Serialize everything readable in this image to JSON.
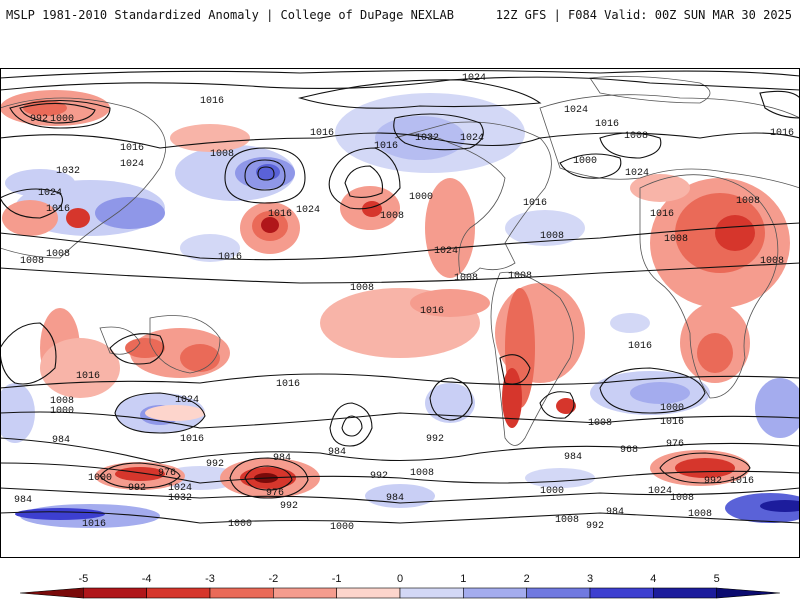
{
  "header": {
    "left": "MSLP 1981-2010 Standardized Anomaly | College of DuPage NEXLAB",
    "right": "12Z GFS | F084 Valid: 00Z SUN MAR 30 2025"
  },
  "colorbar": {
    "ticks": [
      "-5",
      "-4",
      "-3",
      "-2",
      "-1",
      "0",
      "1",
      "2",
      "3",
      "4",
      "5"
    ],
    "colors": [
      "#7a0a0a",
      "#b0161a",
      "#d6362c",
      "#ea6a58",
      "#f59c8e",
      "#fdd5cc",
      "#d3d8f6",
      "#a4acee",
      "#7079e0",
      "#3d3fd0",
      "#1c1c9c",
      "#0b0b70"
    ]
  },
  "isobars": [
    "1024",
    "1016",
    "992",
    "1000",
    "1016",
    "1008",
    "1016",
    "1024",
    "1032",
    "1024",
    "1016",
    "1024",
    "1016",
    "1008",
    "1016",
    "1024",
    "1032",
    "1024",
    "1016",
    "1000",
    "1024",
    "1008",
    "1016",
    "1008",
    "1008",
    "1016",
    "1024",
    "1000",
    "1008",
    "1008",
    "1008",
    "1016",
    "1008",
    "1016",
    "1008",
    "1008",
    "1016",
    "1016",
    "1016",
    "1024",
    "1008",
    "1000",
    "984",
    "1016",
    "1016",
    "1008",
    "992",
    "984",
    "984",
    "976",
    "1000",
    "992",
    "1024",
    "1032",
    "984",
    "976",
    "992",
    "1016",
    "1000",
    "1000",
    "992",
    "984",
    "1008",
    "1000",
    "992",
    "984",
    "968",
    "976",
    "992",
    "1016",
    "1024",
    "1008",
    "1008",
    "1000",
    "1016",
    "1008",
    "984",
    "992",
    "1008"
  ]
}
